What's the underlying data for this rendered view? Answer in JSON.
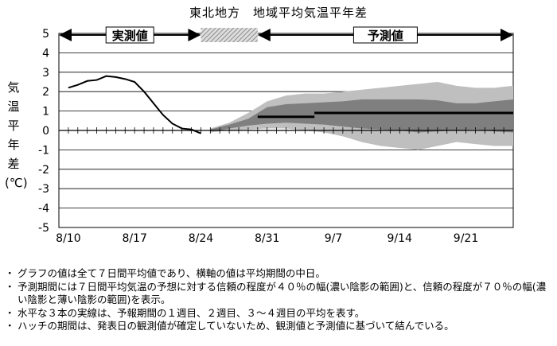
{
  "title": "東北地方　地域平均気温平年差",
  "chart_data": {
    "type": "line",
    "title": "東北地方　地域平均気温平年差",
    "ylabel": "気温平年差(℃)",
    "ylim": [
      -5,
      5
    ],
    "yticks": [
      5,
      4,
      3,
      2,
      1,
      0,
      -1,
      -2,
      -3,
      -4,
      -5
    ],
    "x_tick_labels": [
      "8/10",
      "8/17",
      "8/24",
      "8/31",
      "9/7",
      "9/14",
      "9/21"
    ],
    "x_tick_dates": [
      "2021-08-10",
      "2021-08-17",
      "2021-08-24",
      "2021-08-31",
      "2021-09-07",
      "2021-09-14",
      "2021-09-21"
    ],
    "x_range": [
      "2021-08-09",
      "2021-09-26"
    ],
    "grid": true,
    "period_labels": {
      "observed": "実測値",
      "forecast": "予測値"
    },
    "observed": {
      "x": [
        "2021-08-10",
        "2021-08-11",
        "2021-08-12",
        "2021-08-13",
        "2021-08-14",
        "2021-08-15",
        "2021-08-16",
        "2021-08-17",
        "2021-08-18",
        "2021-08-19",
        "2021-08-20",
        "2021-08-21",
        "2021-08-22",
        "2021-08-23",
        "2021-08-24"
      ],
      "y": [
        2.2,
        2.35,
        2.55,
        2.6,
        2.8,
        2.75,
        2.65,
        2.5,
        2.0,
        1.4,
        0.8,
        0.35,
        0.1,
        0.05,
        -0.15
      ]
    },
    "forecast_bands": {
      "x": [
        "2021-08-25",
        "2021-08-27",
        "2021-08-29",
        "2021-08-31",
        "2021-09-02",
        "2021-09-04",
        "2021-09-06",
        "2021-09-08",
        "2021-09-10",
        "2021-09-12",
        "2021-09-14",
        "2021-09-16",
        "2021-09-18",
        "2021-09-20",
        "2021-09-22",
        "2021-09-24",
        "2021-09-26"
      ],
      "outer_upper": [
        0.1,
        0.4,
        0.9,
        1.5,
        1.8,
        1.9,
        1.9,
        2.0,
        2.1,
        2.2,
        2.3,
        2.4,
        2.5,
        2.3,
        2.2,
        2.2,
        2.3
      ],
      "inner_upper": [
        0.05,
        0.3,
        0.6,
        1.2,
        1.35,
        1.4,
        1.45,
        1.5,
        1.6,
        1.6,
        1.6,
        1.6,
        1.55,
        1.4,
        1.4,
        1.5,
        1.6
      ],
      "inner_lower": [
        -0.05,
        0.1,
        0.25,
        0.35,
        0.4,
        0.35,
        0.3,
        0.2,
        0.1,
        0.05,
        0.0,
        -0.1,
        -0.05,
        0.0,
        0.05,
        -0.05,
        -0.1
      ],
      "outer_lower": [
        -0.1,
        0.0,
        0.05,
        0.1,
        0.1,
        0.0,
        -0.1,
        -0.3,
        -0.6,
        -0.8,
        -0.9,
        -1.0,
        -0.8,
        -0.6,
        -0.7,
        -0.8,
        -0.8
      ]
    },
    "weekly_means": [
      {
        "label": "1週目",
        "x0": "2021-08-30",
        "x1": "2021-09-05",
        "y": 0.7
      },
      {
        "label": "2週目",
        "x0": "2021-09-05",
        "x1": "2021-09-12",
        "y": 0.9
      },
      {
        "label": "3～4週目",
        "x0": "2021-09-05",
        "x1": "2021-09-26",
        "y": 0.9
      }
    ],
    "hatch_period": [
      "2021-08-24",
      "2021-08-30"
    ],
    "colors": {
      "outer_band": "#bfbfbf",
      "inner_band": "#7f7f7f",
      "line": "#000000"
    }
  },
  "notes": [
    "グラフの値は全て７日間平均値であり、横軸の値は平均期間の中日。",
    "予測期間には７日間平均気温の予想に対する信頼の程度が４０％の幅(濃い陰影の範囲)と、信頼の程度が７０％の幅(濃い陰影と薄い陰影の範囲)を表示。",
    "水平な３本の実線は、予報期間の１週目、２週目、３～４週目の平均を表す。",
    "ハッチの期間は、発表日の観測値が確定していないため、観測値と予測値に基づいて結んでいる。"
  ]
}
